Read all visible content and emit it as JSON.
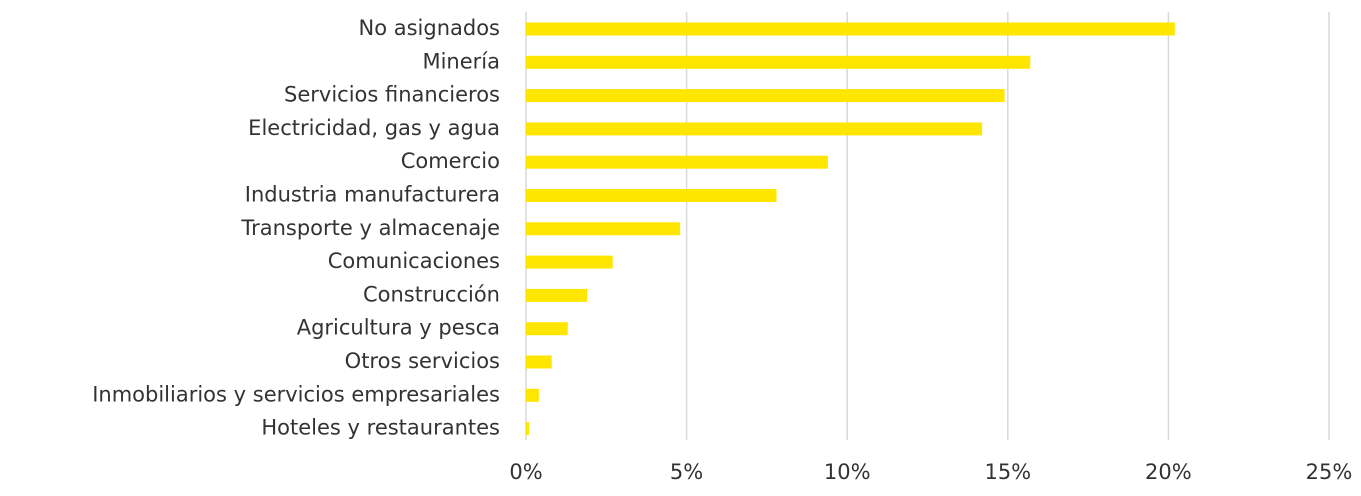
{
  "chart_data": {
    "type": "bar",
    "orientation": "horizontal",
    "categories": [
      "No asignados",
      "Minería",
      "Servicios financieros",
      "Electricidad, gas y agua",
      "Comercio",
      "Industria manufacturera",
      "Transporte y almacenaje",
      "Comunicaciones",
      "Construcción",
      "Agricultura y pesca",
      "Otros servicios",
      "Inmobiliarios y servicios empresariales",
      "Hoteles y restaurantes"
    ],
    "values": [
      20.2,
      15.7,
      14.9,
      14.2,
      9.4,
      7.8,
      4.8,
      2.7,
      1.9,
      1.3,
      0.8,
      0.4,
      0.1
    ],
    "color": "#ffe600",
    "xlim": [
      0,
      25
    ],
    "xticks": [
      {
        "value": 0,
        "label": "0%"
      },
      {
        "value": 5,
        "label": "5%"
      },
      {
        "value": 10,
        "label": "10%"
      },
      {
        "value": 15,
        "label": "15%"
      },
      {
        "value": 20,
        "label": "20%"
      },
      {
        "value": 25,
        "label": "25%"
      }
    ],
    "grid": true
  }
}
